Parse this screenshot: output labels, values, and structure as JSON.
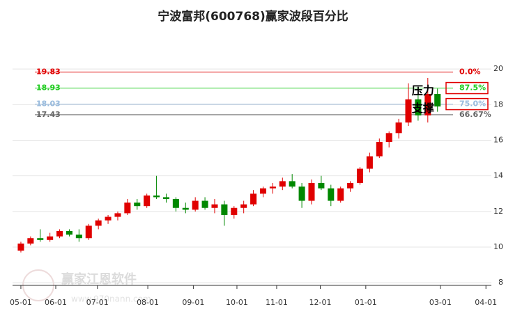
{
  "chart_data": {
    "type": "candlestick",
    "title": "宁波富邦(600768)赢家波段百分比",
    "watermark": "赢家江恩软件",
    "watermark_url": "www.970nann.com",
    "x": [
      0,
      1,
      2,
      3,
      4,
      5,
      6,
      7,
      8,
      9,
      10,
      11,
      12,
      13,
      14,
      15,
      16,
      17,
      18,
      19,
      20,
      21,
      22,
      23,
      24,
      25,
      26,
      27,
      28,
      29,
      30,
      31,
      32,
      33,
      34,
      35,
      36,
      37,
      38,
      39,
      40,
      41,
      42,
      43
    ],
    "open": [
      9.8,
      10.2,
      10.5,
      10.4,
      10.6,
      10.9,
      10.7,
      10.5,
      11.2,
      11.5,
      11.7,
      11.9,
      12.5,
      12.3,
      12.9,
      12.8,
      12.7,
      12.2,
      12.1,
      12.6,
      12.2,
      12.4,
      11.8,
      12.2,
      12.4,
      13.0,
      13.3,
      13.4,
      13.7,
      13.4,
      12.6,
      13.6,
      13.3,
      12.6,
      13.3,
      13.6,
      14.4,
      15.1,
      15.9,
      16.4,
      17.0,
      18.3,
      17.4,
      18.6
    ],
    "high": [
      10.3,
      10.6,
      11.0,
      10.8,
      11.0,
      11.0,
      11.0,
      11.3,
      11.6,
      11.8,
      12.0,
      12.7,
      12.7,
      13.0,
      14.0,
      13.0,
      12.8,
      12.5,
      12.8,
      12.8,
      12.7,
      12.6,
      12.3,
      12.6,
      13.2,
      13.4,
      13.6,
      13.9,
      14.1,
      13.6,
      13.8,
      14.0,
      13.5,
      13.4,
      13.7,
      14.5,
      15.3,
      16.1,
      16.5,
      17.2,
      19.2,
      18.6,
      19.5,
      18.9
    ],
    "low": [
      9.7,
      10.1,
      10.3,
      10.3,
      10.5,
      10.6,
      10.3,
      10.4,
      11.0,
      11.3,
      11.5,
      11.8,
      12.1,
      12.2,
      12.7,
      12.5,
      12.0,
      11.9,
      12.0,
      12.1,
      11.9,
      11.2,
      11.6,
      11.9,
      12.3,
      12.8,
      13.0,
      13.2,
      13.3,
      12.2,
      12.4,
      13.2,
      12.3,
      12.5,
      13.1,
      13.5,
      14.2,
      15.0,
      15.6,
      16.1,
      16.8,
      17.1,
      17.0,
      17.6
    ],
    "close": [
      10.2,
      10.5,
      10.4,
      10.6,
      10.9,
      10.7,
      10.5,
      11.2,
      11.5,
      11.7,
      11.9,
      12.5,
      12.3,
      12.9,
      12.8,
      12.7,
      12.2,
      12.1,
      12.6,
      12.2,
      12.4,
      11.8,
      12.2,
      12.4,
      13.0,
      13.3,
      13.4,
      13.7,
      13.4,
      12.6,
      13.6,
      13.3,
      12.6,
      13.3,
      13.6,
      14.4,
      15.1,
      15.9,
      16.4,
      17.0,
      18.3,
      17.4,
      18.6,
      17.9
    ],
    "up_color": "#e00000",
    "down_color": "#008800",
    "xlim": [
      -0.86,
      48.56
    ],
    "ylim": [
      7.85,
      20.75
    ],
    "xticks": [
      {
        "value": 0,
        "label": "05-01"
      },
      {
        "value": 3.6,
        "label": "06-01"
      },
      {
        "value": 7.9,
        "label": "07-01"
      },
      {
        "value": 13.1,
        "label": "08-01"
      },
      {
        "value": 17.8,
        "label": "09-01"
      },
      {
        "value": 22.3,
        "label": "10-01"
      },
      {
        "value": 26.4,
        "label": "11-01"
      },
      {
        "value": 30.9,
        "label": "12-01"
      },
      {
        "value": 35.6,
        "label": "01-01"
      },
      {
        "value": 43.3,
        "label": "03-01"
      },
      {
        "value": 48,
        "label": "04-01"
      }
    ],
    "yticks": [
      8,
      10,
      12,
      14,
      16,
      18,
      20
    ],
    "grid": true,
    "levels": [
      {
        "value": 19.83,
        "pct_label": "0.0%",
        "color": "#e00000",
        "boxed": false
      },
      {
        "value": 18.93,
        "pct_label": "87.5%",
        "color": "#22cc22",
        "boxed": true
      },
      {
        "value": 18.03,
        "pct_label": "75.0%",
        "color": "#99bbdd",
        "boxed": true
      },
      {
        "value": 17.43,
        "pct_label": "66.67%",
        "color": "#666666",
        "boxed": false
      }
    ],
    "annotations": [
      {
        "text": "压力",
        "x": 41.5,
        "y": 18.75
      },
      {
        "text": "支撑",
        "x": 41.5,
        "y": 17.75
      }
    ]
  }
}
